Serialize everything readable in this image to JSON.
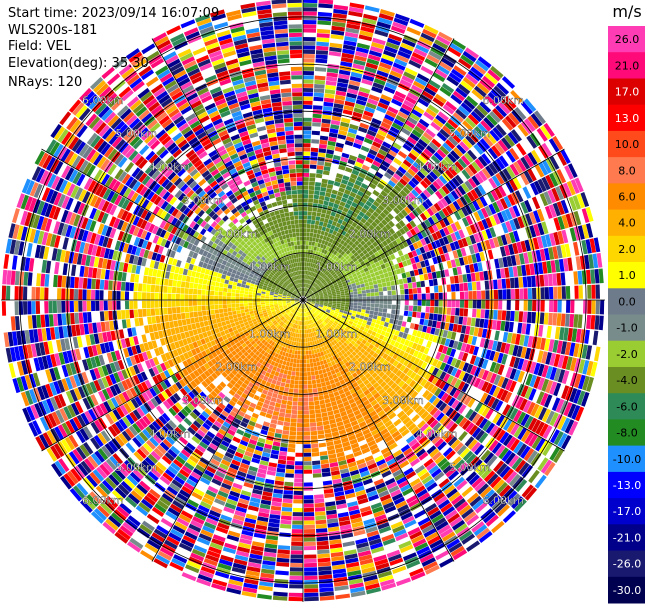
{
  "header": {
    "start_time": "Start time: 2023/09/14 16:07:09",
    "instrument": "WLS200s-181",
    "field": "Field: VEL",
    "elevation": "Elevation(deg): 35.30",
    "nrays": "NRays: 120"
  },
  "colorbar": {
    "unit": "m/s",
    "ticks": [
      "26.0",
      "21.0",
      "17.0",
      "13.0",
      "10.0",
      "8.0",
      "6.0",
      "4.0",
      "2.0",
      "1.0",
      "0.0",
      "-1.0",
      "-2.0",
      "-4.0",
      "-6.0",
      "-8.0",
      "-10.0",
      "-13.0",
      "-17.0",
      "-21.0",
      "-26.0",
      "-30.0"
    ],
    "colors": [
      "#ff3cb4",
      "#ff0a78",
      "#dc0000",
      "#ff0000",
      "#ff4a1c",
      "#ff7a4e",
      "#ff8c00",
      "#ffb000",
      "#ffd700",
      "#ffff00",
      "#6e7b8b",
      "#788c8c",
      "#9acd32",
      "#6b8e23",
      "#2e8b57",
      "#228b22",
      "#1e90ff",
      "#0000ff",
      "#0000cd",
      "#00008b",
      "#191970",
      "#000050"
    ]
  },
  "chart_data": {
    "type": "ppi",
    "field": "VEL",
    "units": "m/s",
    "nrays": 120,
    "range_rings_km": [
      1.0,
      2.0,
      3.0,
      4.0,
      5.0,
      6.0
    ],
    "range_labels": [
      "1.00km",
      "2.00km",
      "3.00km",
      "4.00km",
      "5.00km",
      "6.00km"
    ],
    "max_range_km": 6.4,
    "spokes_deg": [
      0,
      30,
      60,
      90,
      120,
      150,
      180,
      210,
      240,
      270,
      300,
      330
    ],
    "inner_valid_range_km": 2.6,
    "velocity_pattern": {
      "receding_max_ms": 6.0,
      "approaching_max_ms": -6.0,
      "receding_azimuth_deg": 195,
      "beyond_valid_range": "noise"
    }
  }
}
